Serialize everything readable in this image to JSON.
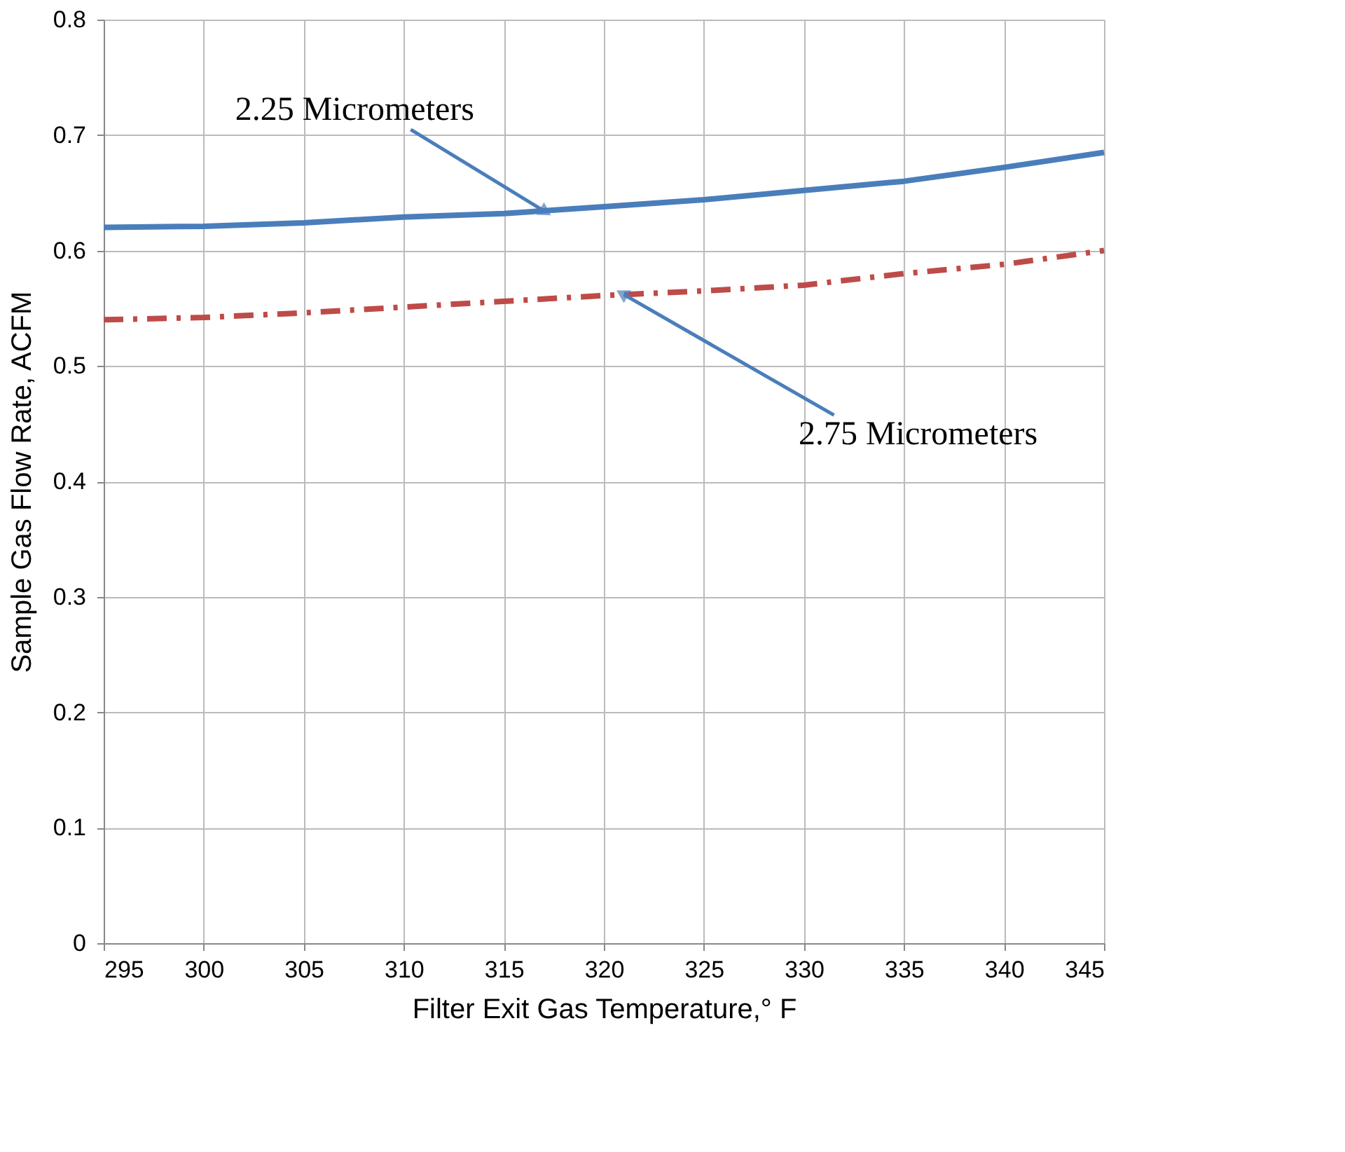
{
  "chart_data": {
    "type": "line",
    "xlabel": "Filter Exit Gas Temperature,° F",
    "ylabel": "Sample Gas Flow Rate, ACFM",
    "x": [
      295,
      300,
      305,
      310,
      315,
      320,
      325,
      330,
      335,
      340,
      345
    ],
    "series": [
      {
        "name": "2.25 Micrometers",
        "color": "#4a7ebb",
        "line_style": "solid",
        "values": [
          0.62,
          0.621,
          0.624,
          0.629,
          0.632,
          0.638,
          0.644,
          0.652,
          0.66,
          0.672,
          0.685
        ]
      },
      {
        "name": "2.75 Micrometers",
        "color": "#be4b48",
        "line_style": "dashed",
        "values": [
          0.54,
          0.542,
          0.546,
          0.551,
          0.556,
          0.561,
          0.565,
          0.57,
          0.58,
          0.588,
          0.6
        ]
      }
    ],
    "xlim": [
      295,
      345
    ],
    "xticks": [
      295,
      300,
      305,
      310,
      315,
      320,
      325,
      330,
      335,
      340,
      345
    ],
    "ylim": [
      0,
      0.8
    ],
    "yticks": [
      0,
      0.1,
      0.2,
      0.3,
      0.4,
      0.5,
      0.6,
      0.7,
      0.8
    ],
    "grid": true,
    "legend": false,
    "marker": "none"
  }
}
